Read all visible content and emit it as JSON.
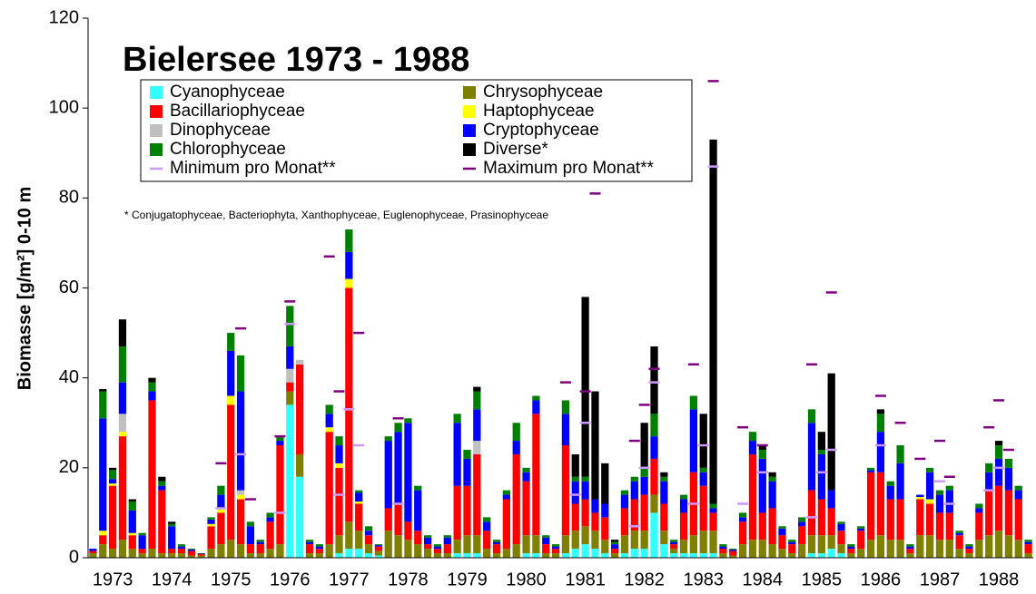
{
  "chart_data": {
    "type": "bar",
    "stacked": true,
    "title": "Bielersee 1973 - 1988",
    "footnote": "* Conjugatophyceae, Bacteriophyta, Xanthophyceae, Euglenophyceae, Prasinophyceae",
    "ylabel": "Biomasse [g/m²] 0-10 m",
    "ylim": [
      0,
      120
    ],
    "yticks": [
      0,
      20,
      40,
      60,
      80,
      100,
      120
    ],
    "categories": [
      null,
      null,
      "1973",
      null,
      null,
      null,
      null,
      null,
      "1974",
      null,
      null,
      null,
      null,
      null,
      "1975",
      null,
      null,
      null,
      null,
      null,
      "1976",
      null,
      null,
      null,
      null,
      null,
      "1977",
      null,
      null,
      null,
      null,
      null,
      "1978",
      null,
      null,
      null,
      null,
      null,
      "1979",
      null,
      null,
      null,
      null,
      null,
      "1980",
      null,
      null,
      null,
      null,
      null,
      "1981",
      null,
      null,
      null,
      null,
      null,
      "1982",
      null,
      null,
      null,
      null,
      null,
      "1983",
      null,
      null,
      null,
      null,
      null,
      "1984",
      null,
      null,
      null,
      null,
      null,
      "1985",
      null,
      null,
      null,
      null,
      null,
      "1986",
      null,
      null,
      null,
      null,
      null,
      "1987",
      null,
      null,
      null,
      null,
      null,
      "1988",
      null,
      null,
      null
    ],
    "series": [
      {
        "name": "Cyanophyceae",
        "color": "#33ffff",
        "values": [
          0,
          0,
          0,
          0,
          0,
          0,
          0,
          0,
          0,
          0,
          0,
          0,
          0,
          0,
          0,
          0,
          0,
          0,
          0,
          0,
          34,
          18,
          0,
          0,
          0,
          1,
          2,
          2,
          1,
          0.5,
          0,
          0,
          0,
          0,
          0,
          0,
          0,
          1,
          1,
          1,
          0,
          0,
          0,
          0,
          1,
          1,
          0,
          0,
          1,
          2,
          3,
          2,
          1,
          0,
          1,
          2,
          2,
          10,
          3,
          1,
          1,
          1,
          1,
          1,
          0,
          0,
          0,
          0,
          0,
          0,
          0,
          0,
          0,
          1,
          1,
          2,
          1,
          0,
          0,
          0,
          0,
          0,
          0,
          0,
          0,
          0,
          0,
          0,
          0,
          0,
          0,
          0,
          0,
          0,
          0,
          0
        ]
      },
      {
        "name": "Chrysophyceae",
        "color": "#808000",
        "values": [
          1,
          3,
          2,
          4,
          2,
          1,
          2,
          1,
          1,
          1,
          0.5,
          0.5,
          2,
          3,
          4,
          3,
          1,
          1,
          2,
          3,
          3,
          5,
          1,
          1,
          3,
          4,
          6,
          4,
          2,
          1,
          6,
          5,
          4,
          3,
          2,
          1,
          1,
          3,
          4,
          4,
          2,
          1,
          2,
          3,
          4,
          4,
          1,
          1,
          4,
          4,
          4,
          4,
          3,
          1,
          4,
          4,
          4,
          4,
          3,
          1,
          3,
          4,
          5,
          5,
          1,
          0.5,
          3,
          4,
          4,
          3,
          2,
          1,
          3,
          4,
          4,
          3,
          2,
          1,
          2,
          4,
          5,
          4,
          4,
          1,
          5,
          5,
          4,
          4,
          2,
          1,
          4,
          5,
          6,
          5,
          4,
          1
        ]
      },
      {
        "name": "Bacillariophyceae",
        "color": "#ff0000",
        "values": [
          0.5,
          2,
          14,
          23,
          3,
          1,
          33,
          14,
          1,
          1,
          1,
          0.3,
          5,
          7,
          30,
          10,
          2,
          2,
          6,
          22,
          2,
          20,
          2,
          1,
          25,
          15,
          52,
          6,
          2,
          1,
          5,
          7,
          4,
          3,
          1,
          1,
          2,
          12,
          11,
          18,
          4,
          2,
          11,
          20,
          12,
          27,
          2,
          1,
          20,
          6,
          6,
          4,
          5,
          1,
          6,
          7,
          8,
          8,
          6,
          1,
          6,
          14,
          10,
          4,
          1,
          1,
          5,
          19,
          6,
          8,
          3,
          2,
          4,
          10,
          8,
          6,
          3,
          1,
          4,
          15,
          14,
          9,
          9,
          1,
          8,
          7,
          6,
          6,
          3,
          1,
          6,
          10,
          10,
          10,
          9,
          2
        ]
      },
      {
        "name": "Haptophyceae",
        "color": "#ffff00",
        "values": [
          0,
          1,
          0.5,
          1,
          0.5,
          0,
          0,
          0,
          0,
          0,
          0,
          0,
          0.5,
          1,
          2,
          1,
          0,
          0,
          0,
          0,
          0,
          0,
          0,
          0,
          1,
          1,
          2,
          0.5,
          0,
          0,
          0,
          0,
          0,
          0,
          0,
          0,
          0,
          0,
          0,
          0,
          0,
          0,
          0,
          0,
          0,
          0,
          0,
          0,
          0,
          0,
          0,
          0,
          0,
          0,
          0,
          0,
          0,
          0,
          0,
          0,
          0,
          0,
          0,
          0,
          0,
          0,
          0,
          0,
          0,
          0,
          0,
          0,
          0,
          0,
          0,
          0,
          0,
          0,
          0,
          0,
          0,
          0,
          0,
          0,
          0.5,
          1,
          0,
          0,
          0,
          0,
          0,
          0,
          0,
          0,
          0,
          0
        ]
      },
      {
        "name": "Dinophyceae",
        "color": "#c0c0c0",
        "values": [
          0,
          0,
          0,
          4,
          0,
          0,
          0,
          0,
          0,
          0,
          0,
          0,
          0,
          0,
          0,
          1,
          0,
          0,
          0,
          0,
          3,
          1,
          0,
          0,
          0,
          0,
          0,
          0,
          0,
          0,
          0,
          0,
          0,
          0,
          0,
          0,
          0,
          0,
          0,
          3,
          0,
          0,
          0,
          0,
          0,
          0,
          0,
          0,
          0,
          0,
          0,
          0,
          0,
          0,
          0,
          0,
          0,
          0,
          0,
          0,
          0,
          0,
          0,
          0,
          0,
          0,
          0,
          0,
          0,
          0,
          0,
          0,
          0,
          0,
          0,
          0,
          0,
          0,
          0,
          0,
          0,
          0,
          0,
          0,
          0,
          0,
          0,
          0,
          0,
          0,
          0,
          0,
          0,
          0,
          0,
          0
        ]
      },
      {
        "name": "Cryptophyceae",
        "color": "#0000ff",
        "values": [
          0.5,
          25,
          1,
          7,
          5,
          3,
          2,
          1,
          5,
          0.5,
          0.3,
          0.1,
          1,
          3,
          10,
          22,
          4,
          0.5,
          1,
          1,
          5,
          0,
          0.5,
          0.5,
          3,
          4,
          6,
          2,
          1,
          0.3,
          15,
          16,
          22,
          9,
          1.5,
          0.5,
          1.5,
          14,
          6,
          7,
          2,
          0.5,
          1,
          3,
          2,
          3,
          1.5,
          0.5,
          7,
          5,
          4,
          3,
          3,
          1,
          3,
          4,
          4,
          5,
          5,
          0.5,
          3,
          14,
          3,
          1,
          0.5,
          0.3,
          1,
          3,
          12,
          6,
          1.5,
          0.5,
          1,
          15,
          10,
          4,
          1.5,
          0.5,
          0.5,
          0.5,
          9,
          3,
          8,
          0.5,
          0.5,
          6,
          4,
          5,
          0.5,
          0.5,
          1,
          4,
          6,
          5,
          2,
          0.5
        ]
      },
      {
        "name": "Chlorophyceae",
        "color": "#008000",
        "values": [
          0,
          6,
          2,
          8,
          2,
          0.5,
          2,
          1,
          0.5,
          0.5,
          0.2,
          0.1,
          0.5,
          2,
          4,
          8,
          1,
          0.5,
          1,
          1,
          9,
          0,
          0.5,
          0.5,
          2,
          2,
          5,
          0.5,
          1,
          0.2,
          1,
          2,
          1,
          1,
          0.5,
          0.5,
          0.5,
          2,
          2,
          4,
          1,
          0.5,
          1,
          4,
          1,
          1,
          0.5,
          0.5,
          3,
          1,
          1,
          0,
          0,
          0.5,
          1,
          1,
          2,
          5,
          1,
          0.5,
          1,
          3,
          1,
          1,
          0.5,
          0.2,
          1,
          2,
          2,
          1,
          0.5,
          0.5,
          1,
          3,
          1,
          0,
          0.5,
          0.5,
          0.5,
          0.5,
          4,
          1,
          4,
          0.5,
          0,
          1,
          1,
          1,
          0.5,
          0.5,
          1,
          2,
          3,
          2,
          1,
          0.5
        ]
      },
      {
        "name": "Diverse*",
        "color": "#000000",
        "values": [
          0,
          0.5,
          0.5,
          6,
          0.5,
          0,
          1,
          1,
          0.5,
          0,
          0,
          0,
          0,
          0,
          0,
          0,
          0,
          0,
          0,
          0,
          0,
          0,
          0,
          0,
          0,
          0,
          0,
          0,
          0,
          0,
          0,
          0,
          0,
          0,
          0,
          0,
          0,
          0,
          0,
          1,
          0,
          0,
          0,
          0,
          0,
          0,
          0,
          0,
          0,
          5,
          40,
          24,
          9,
          0.5,
          0,
          0,
          10,
          15,
          1,
          0,
          0,
          0,
          12,
          81,
          0,
          0,
          0,
          0,
          1,
          1,
          0,
          0,
          0,
          0,
          4,
          26,
          0,
          0,
          0,
          0,
          1,
          0,
          0,
          0,
          0,
          0,
          0,
          0,
          0,
          0,
          0,
          0,
          1,
          0,
          0,
          0
        ]
      }
    ],
    "markers": [
      {
        "name": "Minimum pro Monat**",
        "color": "#cc99ff",
        "values": [
          null,
          null,
          null,
          null,
          null,
          null,
          null,
          null,
          null,
          null,
          null,
          null,
          null,
          11,
          null,
          23,
          null,
          null,
          null,
          10,
          52,
          null,
          null,
          null,
          null,
          14,
          33,
          25,
          null,
          null,
          null,
          12,
          null,
          null,
          null,
          null,
          null,
          null,
          null,
          null,
          null,
          null,
          null,
          null,
          null,
          null,
          null,
          null,
          null,
          14,
          30,
          null,
          null,
          null,
          null,
          7,
          20,
          39,
          null,
          null,
          null,
          12,
          25,
          87,
          null,
          null,
          12,
          null,
          19,
          null,
          null,
          null,
          null,
          9,
          19,
          24,
          null,
          null,
          null,
          null,
          25,
          null,
          null,
          null,
          null,
          null,
          17,
          12,
          null,
          null,
          null,
          15,
          20,
          null,
          null,
          null
        ]
      },
      {
        "name": "Maximum pro Monat**",
        "color": "#800080",
        "values": [
          null,
          null,
          null,
          null,
          null,
          null,
          null,
          null,
          null,
          null,
          null,
          null,
          null,
          21,
          null,
          51,
          13,
          null,
          null,
          27,
          57,
          null,
          null,
          null,
          67,
          37,
          null,
          50,
          null,
          null,
          null,
          31,
          null,
          null,
          null,
          null,
          null,
          null,
          null,
          null,
          null,
          null,
          null,
          null,
          null,
          null,
          null,
          null,
          39,
          null,
          37,
          81,
          null,
          null,
          null,
          26,
          34,
          42,
          null,
          null,
          null,
          43,
          null,
          106,
          null,
          null,
          29,
          null,
          25,
          null,
          null,
          null,
          null,
          43,
          null,
          59,
          null,
          null,
          null,
          null,
          36,
          null,
          30,
          null,
          22,
          null,
          26,
          18,
          null,
          null,
          null,
          29,
          35,
          24,
          null,
          null
        ]
      }
    ]
  }
}
